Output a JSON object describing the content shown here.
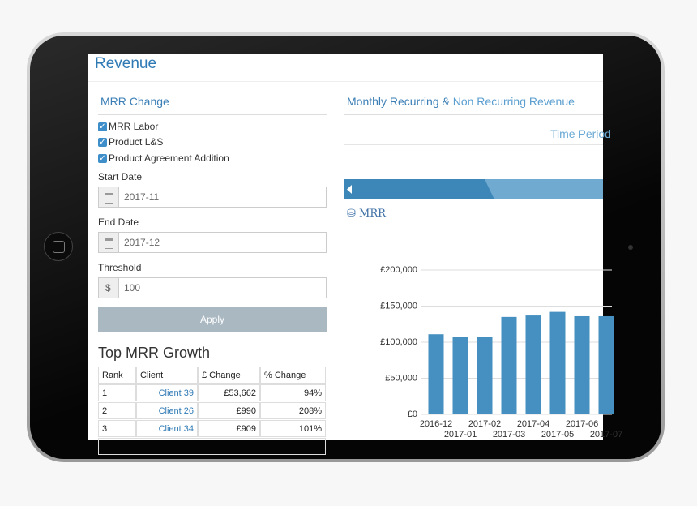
{
  "header": {
    "title": "Revenue"
  },
  "form": {
    "title": "MRR Change",
    "checkboxes": [
      "MRR Labor",
      "Product L&S",
      "Product Agreement Addition"
    ],
    "start_date": {
      "label": "Start Date",
      "value": "2017-11"
    },
    "end_date": {
      "label": "End Date",
      "value": "2017-12"
    },
    "threshold": {
      "label": "Threshold",
      "prefix": "$",
      "value": "100"
    },
    "button": "Apply"
  },
  "table": {
    "title": "Top MRR Growth",
    "columns": [
      "Rank",
      "Client",
      "£ Change",
      "% Change"
    ],
    "rows": [
      [
        "1",
        "Client 39",
        "£53,662",
        "94%"
      ],
      [
        "2",
        "Client 26",
        "£990",
        "208%"
      ],
      [
        "3",
        "Client 34",
        "£909",
        "101%"
      ]
    ]
  },
  "panel": {
    "title_main": "Monthly Recurring &",
    "title_rest": "Non Recurring Revenue",
    "time_period": "Time Period",
    "section": "MRR"
  },
  "chart_data": {
    "type": "bar",
    "color": "#4590c0",
    "categories": [
      "2016-12",
      "2017-01",
      "2017-02",
      "2017-03",
      "2017-04",
      "2017-05",
      "2017-06",
      "2017-07"
    ],
    "values": [
      111000,
      107000,
      107000,
      135000,
      137000,
      142000,
      136000,
      136000
    ],
    "ylim": [
      0,
      200000
    ],
    "yticks": [
      {
        "value": 0,
        "label": "£0"
      },
      {
        "value": 50000,
        "label": "£50,000"
      },
      {
        "value": 100000,
        "label": "£100,000"
      },
      {
        "value": 150000,
        "label": "£150,000"
      },
      {
        "value": 200000,
        "label": "£200,000"
      }
    ],
    "grid": true
  }
}
